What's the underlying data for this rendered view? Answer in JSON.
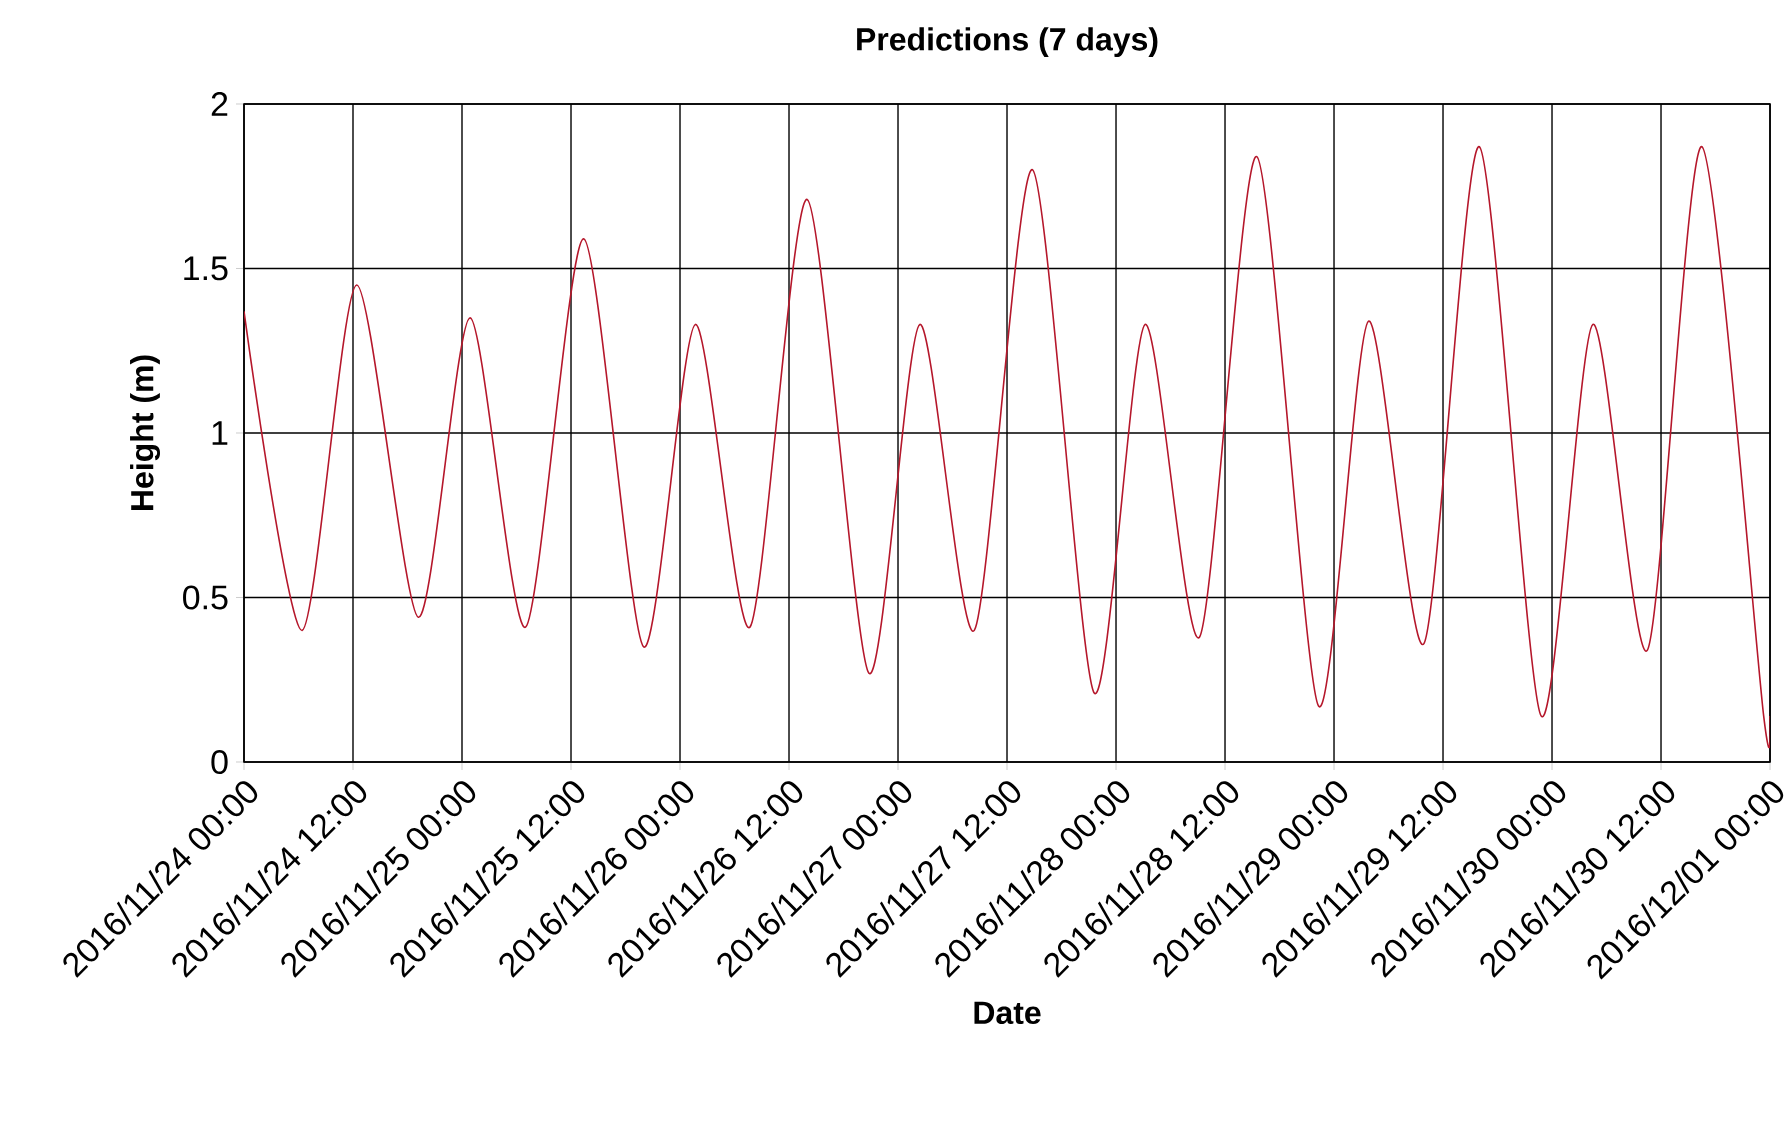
{
  "chart_data": {
    "type": "line",
    "title": "Predictions (7 days)",
    "xlabel": "Date",
    "ylabel": "Height (m)",
    "series": [
      {
        "color": "#b5172b",
        "x": [
          "2016-11-24T00:00",
          "2016-11-24T06:24",
          "2016-11-24T12:24",
          "2016-11-24T19:12",
          "2016-11-25T00:54",
          "2016-11-25T07:00",
          "2016-11-25T13:24",
          "2016-11-25T20:00",
          "2016-11-26T01:42",
          "2016-11-26T07:42",
          "2016-11-26T14:00",
          "2016-11-26T20:48",
          "2016-11-27T02:24",
          "2016-11-27T08:24",
          "2016-11-27T14:48",
          "2016-11-27T21:36",
          "2016-11-28T03:12",
          "2016-11-28T09:12",
          "2016-11-28T15:30",
          "2016-11-28T22:18",
          "2016-11-29T03:48",
          "2016-11-29T09:54",
          "2016-11-29T16:00",
          "2016-11-29T22:48",
          "2016-11-30T04:30",
          "2016-11-30T10:30",
          "2016-11-30T16:30",
          "2016-11-30T23:18",
          "2016-12-01T00:00"
        ],
        "values": [
          1.37,
          0.4,
          1.45,
          0.44,
          1.35,
          0.41,
          1.59,
          0.35,
          1.33,
          0.41,
          1.71,
          0.27,
          1.33,
          0.4,
          1.8,
          0.21,
          1.33,
          0.38,
          1.84,
          0.17,
          1.34,
          0.36,
          1.87,
          0.14,
          1.33,
          0.34,
          1.87,
          0.14,
          0.14
        ]
      }
    ],
    "xlim": [
      "2016-11-24T00:00",
      "2016-12-01T00:00"
    ],
    "xticks": [
      {
        "value": "2016-11-24T00:00",
        "label": "2016/11/24 00:00"
      },
      {
        "value": "2016-11-24T12:00",
        "label": "2016/11/24 12:00"
      },
      {
        "value": "2016-11-25T00:00",
        "label": "2016/11/25 00:00"
      },
      {
        "value": "2016-11-25T12:00",
        "label": "2016/11/25 12:00"
      },
      {
        "value": "2016-11-26T00:00",
        "label": "2016/11/26 00:00"
      },
      {
        "value": "2016-11-26T12:00",
        "label": "2016/11/26 12:00"
      },
      {
        "value": "2016-11-27T00:00",
        "label": "2016/11/27 00:00"
      },
      {
        "value": "2016-11-27T12:00",
        "label": "2016/11/27 12:00"
      },
      {
        "value": "2016-11-28T00:00",
        "label": "2016/11/28 00:00"
      },
      {
        "value": "2016-11-28T12:00",
        "label": "2016/11/28 12:00"
      },
      {
        "value": "2016-11-29T00:00",
        "label": "2016/11/29 00:00"
      },
      {
        "value": "2016-11-29T12:00",
        "label": "2016/11/29 12:00"
      },
      {
        "value": "2016-11-30T00:00",
        "label": "2016/11/30 00:00"
      },
      {
        "value": "2016-11-30T12:00",
        "label": "2016/11/30 12:00"
      },
      {
        "value": "2016-12-01T00:00",
        "label": "2016/12/01 00:00"
      }
    ],
    "ylim": [
      0,
      2
    ],
    "yticks": [
      0,
      0.5,
      1,
      1.5,
      2
    ],
    "grid": true
  }
}
